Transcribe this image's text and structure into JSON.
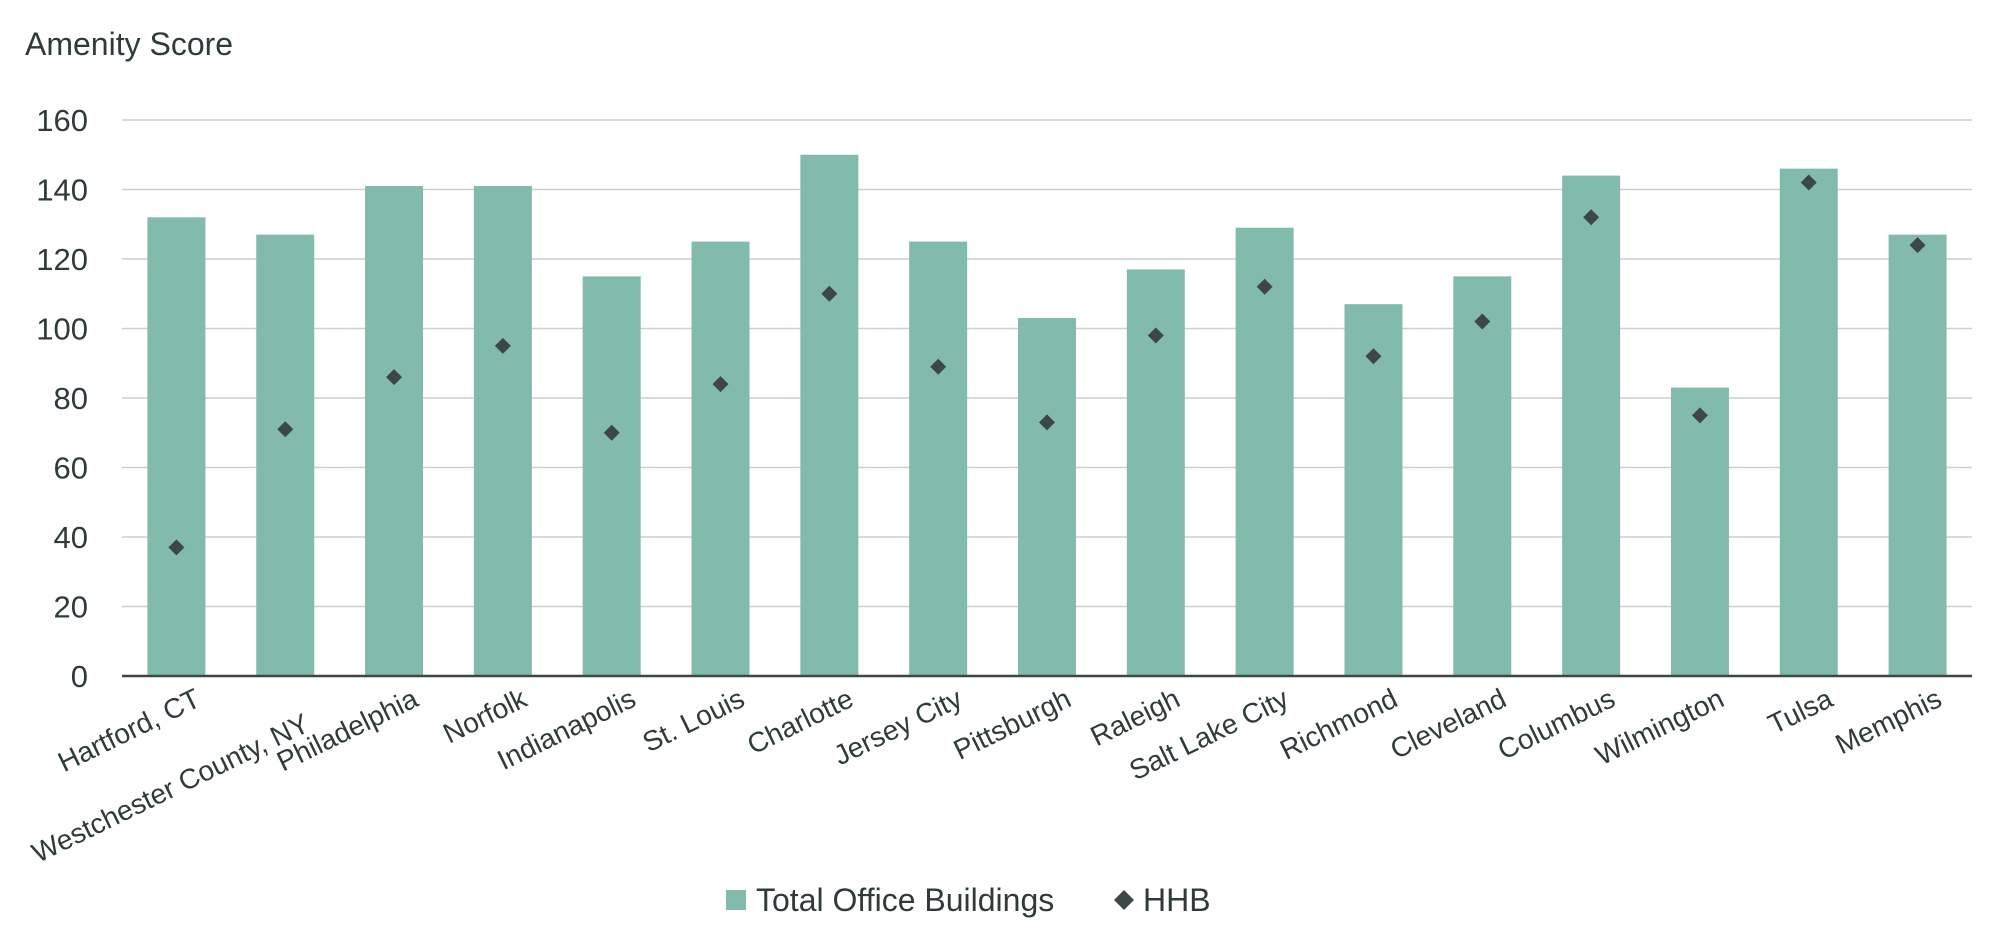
{
  "chart_data": {
    "type": "bar",
    "ylabel": "Amenity Score",
    "ylim": [
      0,
      160
    ],
    "yticks": [
      0,
      20,
      40,
      60,
      80,
      100,
      120,
      140,
      160
    ],
    "grid": true,
    "legend_placement": "bottom-center",
    "categories": [
      "Hartford, CT",
      "Westchester County, NY",
      "Philadelphia",
      "Norfolk",
      "Indianapolis",
      "St. Louis",
      "Charlotte",
      "Jersey City",
      "Pittsburgh",
      "Raleigh",
      "Salt Lake City",
      "Richmond",
      "Cleveland",
      "Columbus",
      "Wilmington",
      "Tulsa",
      "Memphis"
    ],
    "series": [
      {
        "name": "Total Office Buildings",
        "kind": "bar",
        "color": "#82bbad",
        "values": [
          132,
          127,
          141,
          141,
          115,
          125,
          150,
          125,
          103,
          117,
          129,
          107,
          115,
          144,
          83,
          146,
          127
        ]
      },
      {
        "name": "HHB",
        "kind": "marker",
        "color": "#3d4747",
        "values": [
          37,
          71,
          86,
          95,
          70,
          84,
          110,
          89,
          73,
          98,
          112,
          92,
          102,
          132,
          75,
          142,
          124
        ]
      }
    ]
  }
}
